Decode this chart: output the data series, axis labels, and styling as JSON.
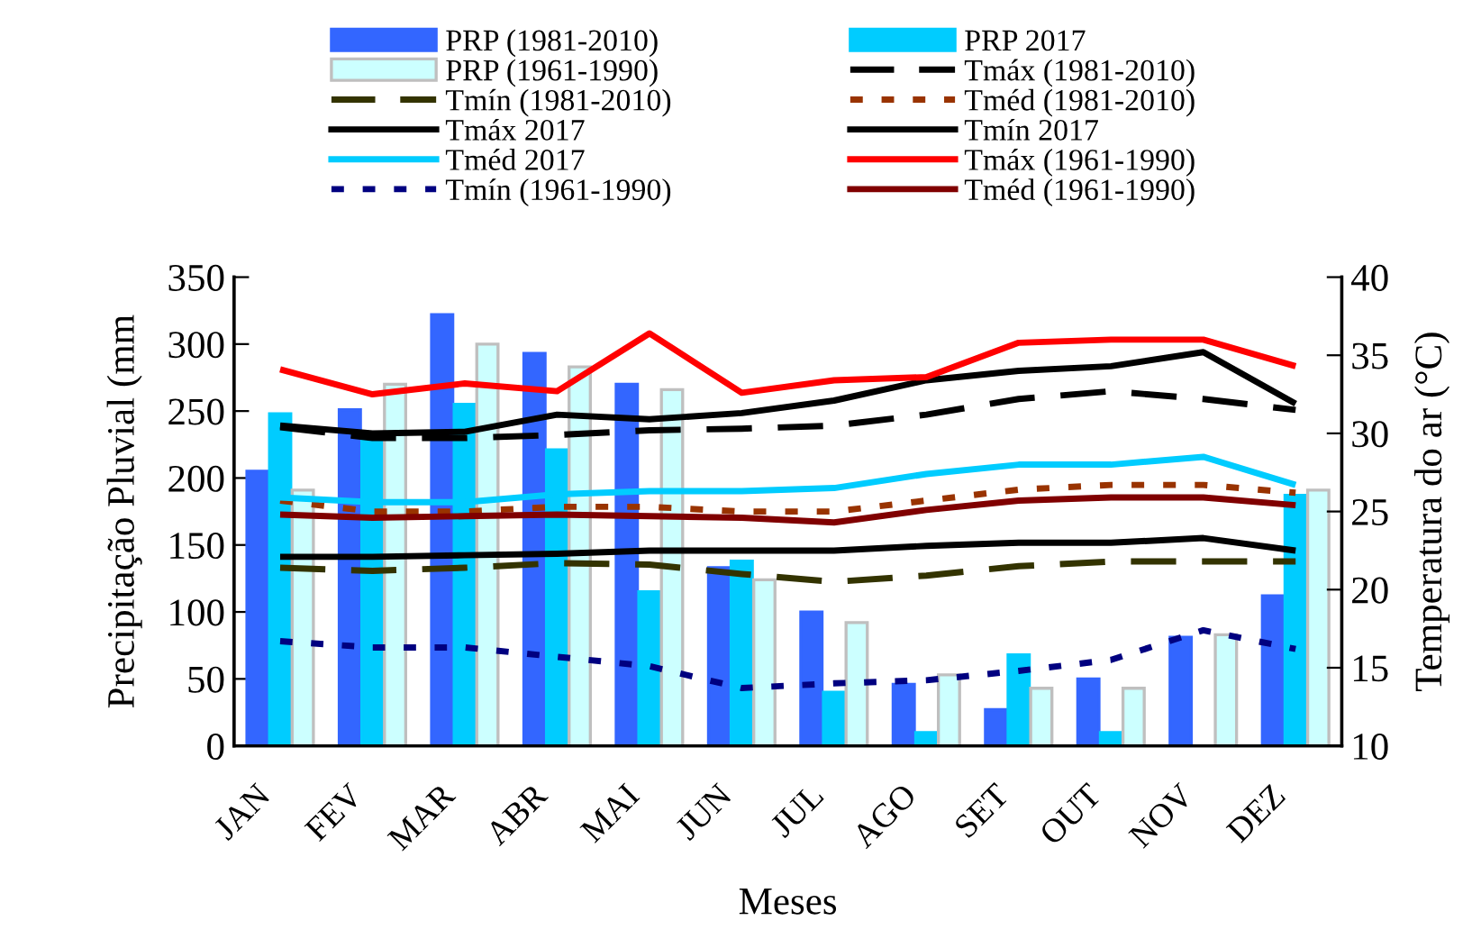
{
  "chart_data": {
    "type": "bar",
    "xlabel": "Meses",
    "ylabel": "Precipitação Pluvial (mm",
    "y2label": "Temperatura do ar (°C)",
    "categories": [
      "JAN",
      "FEV",
      "MAR",
      "ABR",
      "MAI",
      "JUN",
      "JUL",
      "AGO",
      "SET",
      "OUT",
      "NOV",
      "DEZ"
    ],
    "ylim": [
      0,
      350
    ],
    "yticks": [
      0,
      50,
      100,
      150,
      200,
      250,
      300,
      350
    ],
    "y2lim": [
      10,
      40
    ],
    "y2ticks": [
      10,
      15,
      20,
      25,
      30,
      35,
      40
    ],
    "legend": "top",
    "series": [
      {
        "name": "PRP (1981-2010)",
        "color": "#3366ff",
        "values": [
          205,
          251,
          322,
          293,
          270,
          133,
          100,
          46,
          27,
          50,
          81,
          112
        ]
      },
      {
        "name": "PRP 2017",
        "color": "#00ccff",
        "values": [
          248,
          228,
          255,
          221,
          115,
          138,
          40,
          10,
          68,
          10,
          null,
          187
        ]
      },
      {
        "name": "PRP (1961-1990)",
        "color": "#ccffff",
        "values": [
          191,
          270,
          300,
          283,
          266,
          124,
          92,
          53,
          43,
          43,
          83,
          191
        ]
      },
      {
        "name": "Tmáx (1981-2010)",
        "type": "line",
        "axis": "y2",
        "color": "#000000",
        "line_style": "dashed",
        "values": [
          30.4,
          29.7,
          29.7,
          29.9,
          30.2,
          30.3,
          30.5,
          31.2,
          32.2,
          32.7,
          32.2,
          31.5
        ]
      },
      {
        "name": "Tmín (1981-2010)",
        "type": "line",
        "axis": "y2",
        "color": "#333300",
        "line_style": "dashed",
        "values": [
          21.4,
          21.2,
          21.4,
          21.7,
          21.6,
          21.0,
          20.5,
          20.9,
          21.5,
          21.8,
          21.8,
          21.8
        ]
      },
      {
        "name": "Tméd (1981-2010)",
        "type": "line",
        "axis": "y2",
        "color": "#993300",
        "line_style": "dotted",
        "values": [
          25.7,
          25.0,
          25.0,
          25.3,
          25.3,
          25.0,
          25.0,
          25.7,
          26.4,
          26.7,
          26.7,
          26.2
        ]
      },
      {
        "name": "Tmáx 2017",
        "type": "line",
        "axis": "y2",
        "color": "#000000",
        "line_style": "solid",
        "values": [
          30.5,
          30.0,
          30.1,
          31.2,
          30.9,
          31.3,
          32.1,
          33.4,
          34.0,
          34.3,
          35.2,
          31.9
        ]
      },
      {
        "name": "Tmín 2017",
        "type": "line",
        "axis": "y2",
        "color": "#000000",
        "line_style": "solid",
        "values": [
          22.1,
          22.1,
          22.2,
          22.3,
          22.5,
          22.5,
          22.5,
          22.8,
          23.0,
          23.0,
          23.3,
          22.5
        ]
      },
      {
        "name": "Tméd 2017",
        "type": "line",
        "axis": "y2",
        "color": "#00ccff",
        "line_style": "solid",
        "values": [
          25.9,
          25.6,
          25.6,
          26.1,
          26.3,
          26.3,
          26.5,
          27.4,
          28.0,
          28.0,
          28.5,
          26.7
        ]
      },
      {
        "name": "Tmáx (1961-1990)",
        "type": "line",
        "axis": "y2",
        "color": "#ff0000",
        "line_style": "solid",
        "values": [
          34.1,
          32.5,
          33.2,
          32.7,
          36.4,
          32.6,
          33.4,
          33.6,
          35.8,
          36.0,
          36.0,
          34.3
        ]
      },
      {
        "name": "Tmín (1961-1990)",
        "type": "line",
        "axis": "y2",
        "color": "#000080",
        "line_style": "dotted",
        "values": [
          16.7,
          16.3,
          16.3,
          15.7,
          15.1,
          13.7,
          14.0,
          14.2,
          14.8,
          15.5,
          17.4,
          16.2
        ]
      },
      {
        "name": "Tméd (1961-1990)",
        "type": "line",
        "axis": "y2",
        "color": "#800000",
        "line_style": "solid",
        "values": [
          24.8,
          24.6,
          24.7,
          24.8,
          24.7,
          24.6,
          24.3,
          25.1,
          25.7,
          25.9,
          25.9,
          25.4
        ]
      }
    ]
  }
}
